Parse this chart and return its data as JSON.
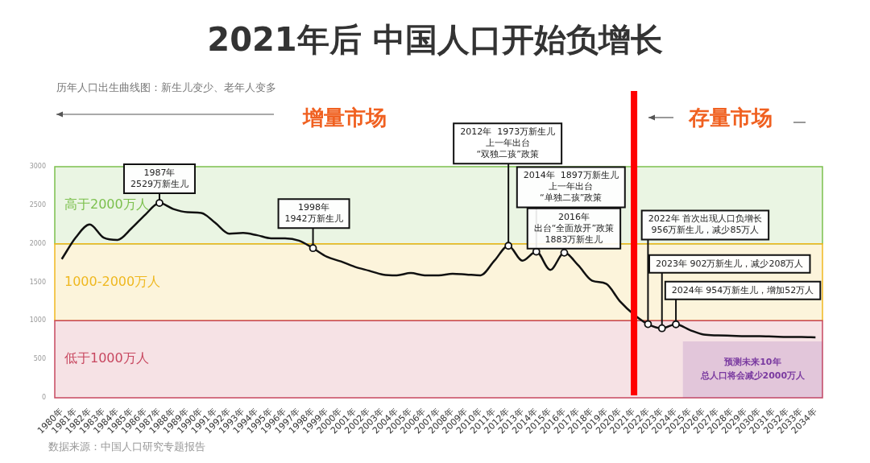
{
  "chart_data": {
    "type": "line",
    "title": "2021年后 中国人口开始负增长",
    "subtitle": "历年人口出生曲线图：新生儿变少、老年人变多",
    "categories": [
      "1980年",
      "1981年",
      "1982年",
      "1983年",
      "1984年",
      "1985年",
      "1986年",
      "1987年",
      "1988年",
      "1989年",
      "1990年",
      "1991年",
      "1992年",
      "1993年",
      "1994年",
      "1995年",
      "1996年",
      "1997年",
      "1998年",
      "1999年",
      "2000年",
      "2001年",
      "2002年",
      "2003年",
      "2004年",
      "2005年",
      "2006年",
      "2007年",
      "2008年",
      "2009年",
      "2010年",
      "2011年",
      "2012年",
      "2013年",
      "2014年",
      "2015年",
      "2016年",
      "2017年",
      "2018年",
      "2019年",
      "2020年",
      "2021年",
      "2022年",
      "2023年",
      "2024年",
      "2025年",
      "2026年",
      "2027年",
      "2028年",
      "2029年",
      "2030年",
      "2031年",
      "2032年",
      "2033年",
      "2034年"
    ],
    "series": [
      {
        "color": "#111111",
        "values": [
          1800,
          2080,
          2250,
          2080,
          2050,
          2200,
          2380,
          2529,
          2450,
          2410,
          2400,
          2270,
          2130,
          2140,
          2110,
          2070,
          2070,
          2040,
          1942,
          1830,
          1770,
          1700,
          1650,
          1600,
          1590,
          1620,
          1590,
          1590,
          1610,
          1600,
          1590,
          1780,
          1973,
          1780,
          1897,
          1660,
          1883,
          1720,
          1520,
          1480,
          1250,
          1080,
          956,
          902,
          954,
          880,
          820,
          810,
          805,
          800,
          800,
          795,
          790,
          790,
          785
        ]
      }
    ],
    "ylim": [
      0,
      3000
    ],
    "yticks": [
      0,
      500,
      1000,
      1500,
      2000,
      2500,
      3000
    ],
    "marker": "none",
    "bands": [
      {
        "axis": "y",
        "from": 2000,
        "to": 3000,
        "label": "高于2000万人",
        "color": "#7cc04e"
      },
      {
        "axis": "y",
        "from": 1000,
        "to": 2000,
        "label": "1000-2000万人",
        "color": "#efb820"
      },
      {
        "axis": "y",
        "from": 0,
        "to": 1000,
        "label": "低于1000万人",
        "color": "#c84860"
      },
      {
        "axis": "x",
        "from": "2025年",
        "to": "2034年",
        "label": "预测未来10年总人口将会减少2000万人",
        "color": "#7a3aa0"
      }
    ],
    "ref_lines": [
      {
        "axis": "x",
        "value": "2021年",
        "color": "#ff0000"
      }
    ],
    "annotations": [
      {
        "text": "1987年2529万新生儿",
        "x": "1987年",
        "y": 2529
      },
      {
        "text": "1998年1942万新生儿",
        "x": "1998年",
        "y": 1942
      },
      {
        "text": "2012年  1973万新生儿上一年出台“双独二孩”政策",
        "x": "2012年",
        "y": 1973
      },
      {
        "text": "2014年  1897万新生儿上一年出台“单独二孩”政策",
        "x": "2014年",
        "y": 1897
      },
      {
        "text": "2016年出台“全面放开”政策1883万新生儿",
        "x": "2016年",
        "y": 1883
      },
      {
        "text": "2022年 首次出现人口负增长956万新生儿，减少85万人",
        "x": "2022年",
        "y": 956
      },
      {
        "text": "2023年 902万新生儿，减少208万人",
        "x": "2023年",
        "y": 902
      },
      {
        "text": "2024年 954万新生儿，增加52万人",
        "x": "2024年",
        "y": 954
      },
      "增量市场",
      "存量市场",
      "数据来源：中国人口研究专题报告"
    ]
  }
}
